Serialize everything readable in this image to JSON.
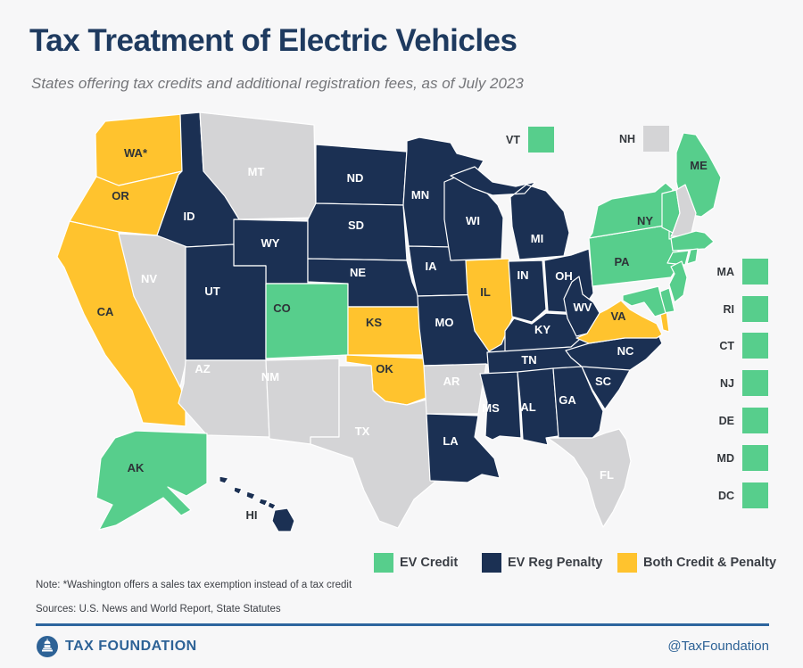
{
  "header": {
    "title": "Tax Treatment of Electric Vehicles",
    "subtitle": "States offering tax credits and additional registration fees, as of July 2023"
  },
  "colors": {
    "credit": "#57CE8C",
    "penalty": "#1B3053",
    "both": "#FFC32E",
    "none": "#D4D4D6",
    "background": "#F7F7F8",
    "state_border": "#FFFFFF",
    "label_dark": "#2E3338",
    "label_light": "#FFFFFF",
    "title_navy": "#1E3A5F",
    "brand_blue": "#2D6296",
    "divider_blue": "#2D659E"
  },
  "legend": [
    {
      "label": "EV Credit",
      "status": "credit"
    },
    {
      "label": "EV Reg Penalty",
      "status": "penalty"
    },
    {
      "label": "Both Credit & Penalty",
      "status": "both"
    }
  ],
  "map": {
    "states": [
      {
        "id": "WA",
        "label": "WA*",
        "status": "both"
      },
      {
        "id": "OR",
        "label": "OR",
        "status": "both"
      },
      {
        "id": "CA",
        "label": "CA",
        "status": "both"
      },
      {
        "id": "NV",
        "label": "NV",
        "status": "none"
      },
      {
        "id": "ID",
        "label": "ID",
        "status": "penalty"
      },
      {
        "id": "MT",
        "label": "MT",
        "status": "none"
      },
      {
        "id": "WY",
        "label": "WY",
        "status": "penalty"
      },
      {
        "id": "UT",
        "label": "UT",
        "status": "penalty"
      },
      {
        "id": "CO",
        "label": "CO",
        "status": "credit"
      },
      {
        "id": "AZ",
        "label": "AZ",
        "status": "none"
      },
      {
        "id": "NM",
        "label": "NM",
        "status": "none"
      },
      {
        "id": "ND",
        "label": "ND",
        "status": "penalty"
      },
      {
        "id": "SD",
        "label": "SD",
        "status": "penalty"
      },
      {
        "id": "NE",
        "label": "NE",
        "status": "penalty"
      },
      {
        "id": "KS",
        "label": "KS",
        "status": "both"
      },
      {
        "id": "OK",
        "label": "OK",
        "status": "both"
      },
      {
        "id": "TX",
        "label": "TX",
        "status": "none"
      },
      {
        "id": "MN",
        "label": "MN",
        "status": "penalty"
      },
      {
        "id": "IA",
        "label": "IA",
        "status": "penalty"
      },
      {
        "id": "MO",
        "label": "MO",
        "status": "penalty"
      },
      {
        "id": "AR",
        "label": "AR",
        "status": "none"
      },
      {
        "id": "LA",
        "label": "LA",
        "status": "penalty"
      },
      {
        "id": "WI",
        "label": "WI",
        "status": "penalty"
      },
      {
        "id": "IL",
        "label": "IL",
        "status": "both"
      },
      {
        "id": "MI",
        "label": "MI",
        "status": "penalty"
      },
      {
        "id": "IN",
        "label": "IN",
        "status": "penalty"
      },
      {
        "id": "OH",
        "label": "OH",
        "status": "penalty"
      },
      {
        "id": "KY",
        "label": "KY",
        "status": "penalty"
      },
      {
        "id": "TN",
        "label": "TN",
        "status": "penalty"
      },
      {
        "id": "MS",
        "label": "MS",
        "status": "penalty"
      },
      {
        "id": "AL",
        "label": "AL",
        "status": "penalty"
      },
      {
        "id": "GA",
        "label": "GA",
        "status": "penalty"
      },
      {
        "id": "FL",
        "label": "FL",
        "status": "none"
      },
      {
        "id": "SC",
        "label": "SC",
        "status": "penalty"
      },
      {
        "id": "NC",
        "label": "NC",
        "status": "penalty"
      },
      {
        "id": "WV",
        "label": "WV",
        "status": "penalty"
      },
      {
        "id": "VA",
        "label": "VA",
        "status": "both"
      },
      {
        "id": "PA",
        "label": "PA",
        "status": "credit"
      },
      {
        "id": "NY",
        "label": "NY",
        "status": "credit"
      },
      {
        "id": "ME",
        "label": "ME",
        "status": "credit"
      },
      {
        "id": "VT",
        "label": "",
        "status": "credit"
      },
      {
        "id": "NH",
        "label": "",
        "status": "none"
      },
      {
        "id": "MA",
        "label": "",
        "status": "credit"
      },
      {
        "id": "CT",
        "label": "",
        "status": "credit"
      },
      {
        "id": "RI",
        "label": "",
        "status": "credit"
      },
      {
        "id": "NJ",
        "label": "",
        "status": "credit"
      },
      {
        "id": "DE",
        "label": "",
        "status": "credit"
      },
      {
        "id": "MD",
        "label": "",
        "status": "credit"
      },
      {
        "id": "AK",
        "label": "AK",
        "status": "credit"
      },
      {
        "id": "HI",
        "label": "HI",
        "status": "penalty"
      }
    ],
    "tiles": [
      {
        "id": "VT",
        "label": "VT",
        "status": "credit"
      },
      {
        "id": "NH",
        "label": "NH",
        "status": "none"
      },
      {
        "id": "MA",
        "label": "MA",
        "status": "credit"
      },
      {
        "id": "RI",
        "label": "RI",
        "status": "credit"
      },
      {
        "id": "CT",
        "label": "CT",
        "status": "credit"
      },
      {
        "id": "NJ",
        "label": "NJ",
        "status": "credit"
      },
      {
        "id": "DE",
        "label": "DE",
        "status": "credit"
      },
      {
        "id": "MD",
        "label": "MD",
        "status": "credit"
      },
      {
        "id": "DC",
        "label": "DC",
        "status": "credit"
      }
    ]
  },
  "note": "Note: *Washington offers a sales tax exemption instead of a tax credit",
  "sources": "Sources: U.S. News and World Report, State Statutes",
  "footer": {
    "brand": "TAX FOUNDATION",
    "handle": "@TaxFoundation"
  }
}
